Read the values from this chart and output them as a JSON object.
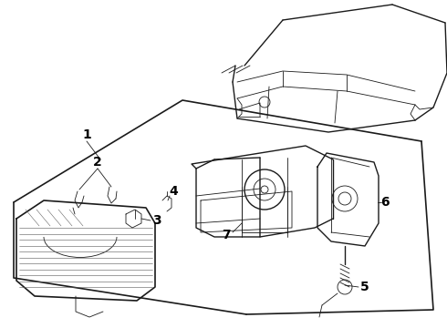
{
  "bg_color": "#ffffff",
  "line_color": "#1a1a1a",
  "label_color": "#000000",
  "label_fontsize": 10,
  "figsize": [
    4.9,
    3.6
  ],
  "dpi": 100
}
